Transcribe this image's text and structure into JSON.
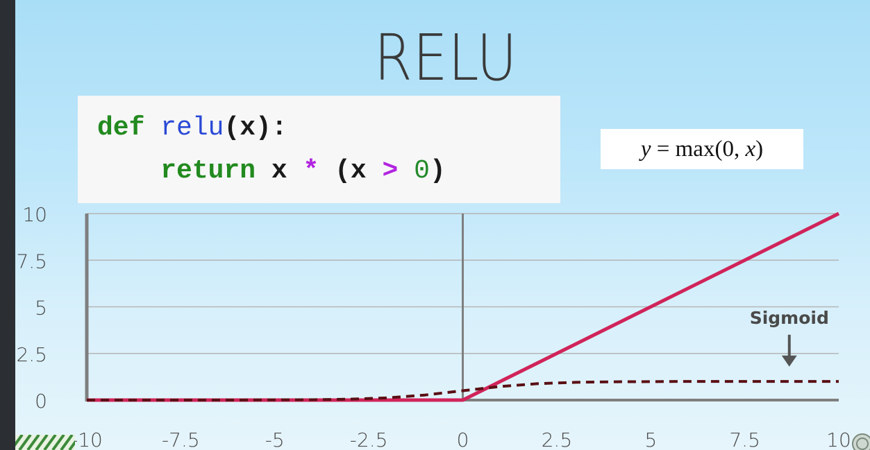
{
  "slide": {
    "title": "RELU"
  },
  "code": {
    "line1": {
      "kw": "def",
      "fn": "relu",
      "rest": "(x):"
    },
    "line2": {
      "kw": "return",
      "a": "x",
      "op1": "*",
      "paren_open": "(x",
      "op2": ">",
      "num": "0",
      "paren_close": ")"
    }
  },
  "formula": {
    "lhs": "y",
    "eq": "=",
    "fn": "max",
    "args_open": "(0,",
    "arg": "x",
    "args_close": ")"
  },
  "chart_data": {
    "type": "line",
    "title": "",
    "xlabel": "",
    "ylabel": "",
    "xlim": [
      -10,
      10
    ],
    "ylim": [
      0,
      10
    ],
    "x_ticks": [
      "-10",
      "-7.5",
      "-5",
      "-2.5",
      "0",
      "2.5",
      "5",
      "7.5",
      "10"
    ],
    "y_ticks": [
      "0",
      "2.5",
      "5",
      "7.5",
      "10"
    ],
    "grid": "horizontal",
    "series": [
      {
        "name": "",
        "style": "solid",
        "color": "#d0245a",
        "x": [
          -10,
          0,
          10
        ],
        "y": [
          0,
          0,
          10
        ]
      },
      {
        "name": "Sigmoid",
        "style": "dashed",
        "color": "#5a0f14",
        "x": [
          -10,
          -8,
          -6,
          -5,
          -4,
          -3,
          -2,
          -1,
          0,
          1,
          2,
          3,
          4,
          5,
          6,
          8,
          10
        ],
        "y": [
          0,
          0,
          0,
          0.01,
          0.02,
          0.05,
          0.12,
          0.27,
          0.5,
          0.73,
          0.88,
          0.95,
          0.98,
          0.99,
          1,
          1,
          1
        ]
      }
    ],
    "annotations": [
      {
        "text": "Sigmoid",
        "x": 8.5,
        "y": 2.5
      }
    ]
  },
  "colors": {
    "axis": "#7f7f7f",
    "grid": "#b5b5b5",
    "relu": "#d0245a",
    "sigmoid": "#5a0f14"
  }
}
